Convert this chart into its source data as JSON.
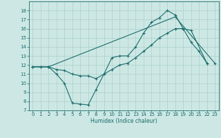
{
  "xlabel": "Humidex (Indice chaleur)",
  "xlim": [
    -0.5,
    23.5
  ],
  "ylim": [
    7,
    19
  ],
  "xticks": [
    0,
    1,
    2,
    3,
    4,
    5,
    6,
    7,
    8,
    9,
    10,
    11,
    12,
    13,
    14,
    15,
    16,
    17,
    18,
    19,
    20,
    21,
    22,
    23
  ],
  "yticks": [
    7,
    8,
    9,
    10,
    11,
    12,
    13,
    14,
    15,
    16,
    17,
    18
  ],
  "bg_color": "#cde8e4",
  "line_color": "#1a6b6b",
  "grid_color": "#aacfcb",
  "line1_x": [
    0,
    1,
    2,
    3,
    4,
    5,
    6,
    7,
    8,
    9,
    10,
    11,
    12,
    13,
    14,
    15,
    16,
    17,
    18,
    19,
    20,
    21,
    22
  ],
  "line1_y": [
    11.8,
    11.8,
    11.8,
    11.0,
    10.0,
    7.8,
    7.7,
    7.6,
    9.3,
    11.0,
    12.8,
    13.0,
    13.0,
    14.0,
    15.5,
    16.7,
    17.2,
    18.0,
    17.5,
    16.0,
    14.5,
    13.5,
    12.2
  ],
  "line2_x": [
    0,
    1,
    2,
    3,
    4,
    5,
    6,
    7,
    8,
    9,
    10,
    11,
    12,
    13,
    14,
    15,
    16,
    17,
    18,
    19,
    20,
    22
  ],
  "line2_y": [
    11.8,
    11.8,
    11.8,
    11.5,
    11.4,
    11.0,
    10.8,
    10.8,
    10.5,
    11.0,
    11.5,
    12.0,
    12.2,
    12.8,
    13.5,
    14.2,
    15.0,
    15.5,
    16.0,
    16.0,
    15.8,
    12.2
  ],
  "line3_x": [
    0,
    2,
    18,
    23
  ],
  "line3_y": [
    11.8,
    11.8,
    17.3,
    12.2
  ],
  "tick_fontsize": 5.0,
  "xlabel_fontsize": 5.5
}
